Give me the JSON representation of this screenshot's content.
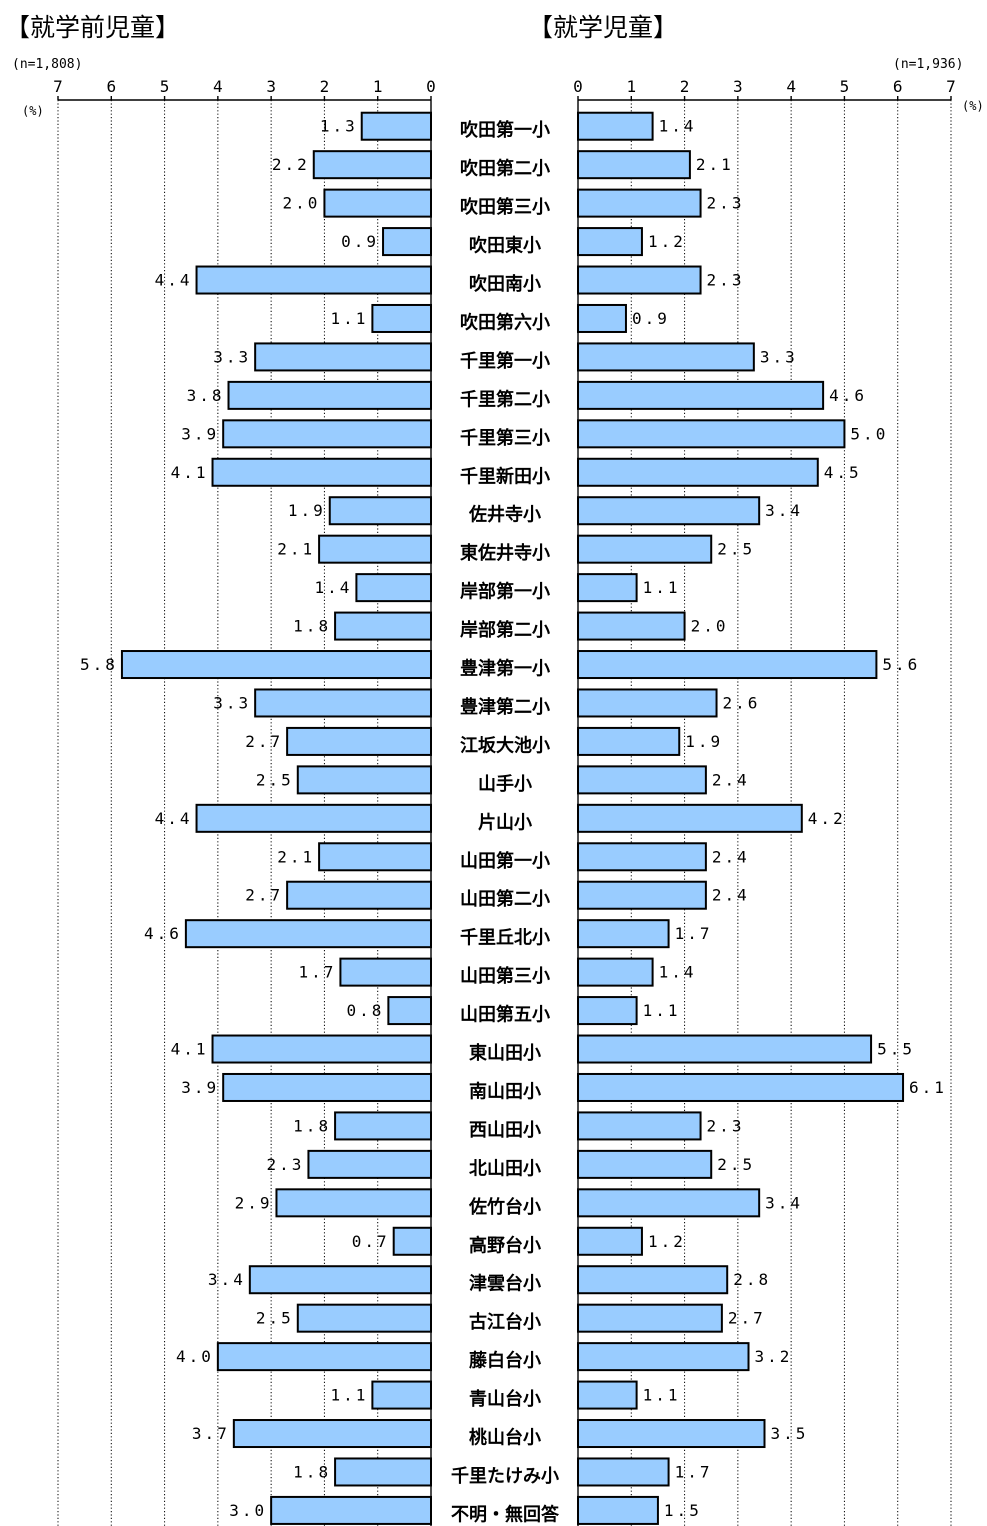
{
  "chart_data": [
    {
      "type": "bar",
      "orientation": "horizontal",
      "direction": "right-to-left",
      "title": "【就学前児童】",
      "sample": "(n=1,808)",
      "unit": "(%)",
      "xlim": [
        0,
        7
      ],
      "ticks": [
        "0",
        "1",
        "2",
        "3",
        "4",
        "5",
        "6",
        "7"
      ],
      "grid": true,
      "value_labels": [
        "1.3",
        "2.2",
        "2.0",
        "0.9",
        "4.4",
        "1.1",
        "3.3",
        "3.8",
        "3.9",
        "4.1",
        "1.9",
        "2.1",
        "1.4",
        "1.8",
        "5.8",
        "3.3",
        "2.7",
        "2.5",
        "4.4",
        "2.1",
        "2.7",
        "4.6",
        "1.7",
        "0.8",
        "4.1",
        "3.9",
        "1.8",
        "2.3",
        "2.9",
        "0.7",
        "3.4",
        "2.5",
        "4.0",
        "1.1",
        "3.7",
        "1.8",
        "3.0"
      ],
      "values": [
        1.3,
        2.2,
        2.0,
        0.9,
        4.4,
        1.1,
        3.3,
        3.8,
        3.9,
        4.1,
        1.9,
        2.1,
        1.4,
        1.8,
        5.8,
        3.3,
        2.7,
        2.5,
        4.4,
        2.1,
        2.7,
        4.6,
        1.7,
        0.8,
        4.1,
        3.9,
        1.8,
        2.3,
        2.9,
        0.7,
        3.4,
        2.5,
        4.0,
        1.1,
        3.7,
        1.8,
        3.0
      ]
    },
    {
      "type": "bar",
      "orientation": "horizontal",
      "direction": "left-to-right",
      "title": "【就学児童】",
      "sample": "(n=1,936)",
      "unit": "(%)",
      "xlim": [
        0,
        7
      ],
      "ticks": [
        "0",
        "1",
        "2",
        "3",
        "4",
        "5",
        "6",
        "7"
      ],
      "grid": true,
      "value_labels": [
        "1.4",
        "2.1",
        "2.3",
        "1.2",
        "2.3",
        "0.9",
        "3.3",
        "4.6",
        "5.0",
        "4.5",
        "3.4",
        "2.5",
        "1.1",
        "2.0",
        "5.6",
        "2.6",
        "1.9",
        "2.4",
        "4.2",
        "2.4",
        "2.4",
        "1.7",
        "1.4",
        "1.1",
        "5.5",
        "6.1",
        "2.3",
        "2.5",
        "3.4",
        "1.2",
        "2.8",
        "2.7",
        "3.2",
        "1.1",
        "3.5",
        "1.7",
        "1.5"
      ],
      "values": [
        1.4,
        2.1,
        2.3,
        1.2,
        2.3,
        0.9,
        3.3,
        4.6,
        5.0,
        4.5,
        3.4,
        2.5,
        1.1,
        2.0,
        5.6,
        2.6,
        1.9,
        2.4,
        4.2,
        2.4,
        2.4,
        1.7,
        1.4,
        1.1,
        5.5,
        6.1,
        2.3,
        2.5,
        3.4,
        1.2,
        2.8,
        2.7,
        3.2,
        1.1,
        3.5,
        1.7,
        1.5
      ]
    }
  ],
  "categories": [
    "吹田第一小",
    "吹田第二小",
    "吹田第三小",
    "吹田東小",
    "吹田南小",
    "吹田第六小",
    "千里第一小",
    "千里第二小",
    "千里第三小",
    "千里新田小",
    "佐井寺小",
    "東佐井寺小",
    "岸部第一小",
    "岸部第二小",
    "豊津第一小",
    "豊津第二小",
    "江坂大池小",
    "山手小",
    "片山小",
    "山田第一小",
    "山田第二小",
    "千里丘北小",
    "山田第三小",
    "山田第五小",
    "東山田小",
    "南山田小",
    "西山田小",
    "北山田小",
    "佐竹台小",
    "高野台小",
    "津雲台小",
    "古江台小",
    "藤白台小",
    "青山台小",
    "桃山台小",
    "千里たけみ小",
    "不明・無回答"
  ],
  "colors": {
    "bar_fill": "#99ccff",
    "bar_stroke": "#000000"
  }
}
